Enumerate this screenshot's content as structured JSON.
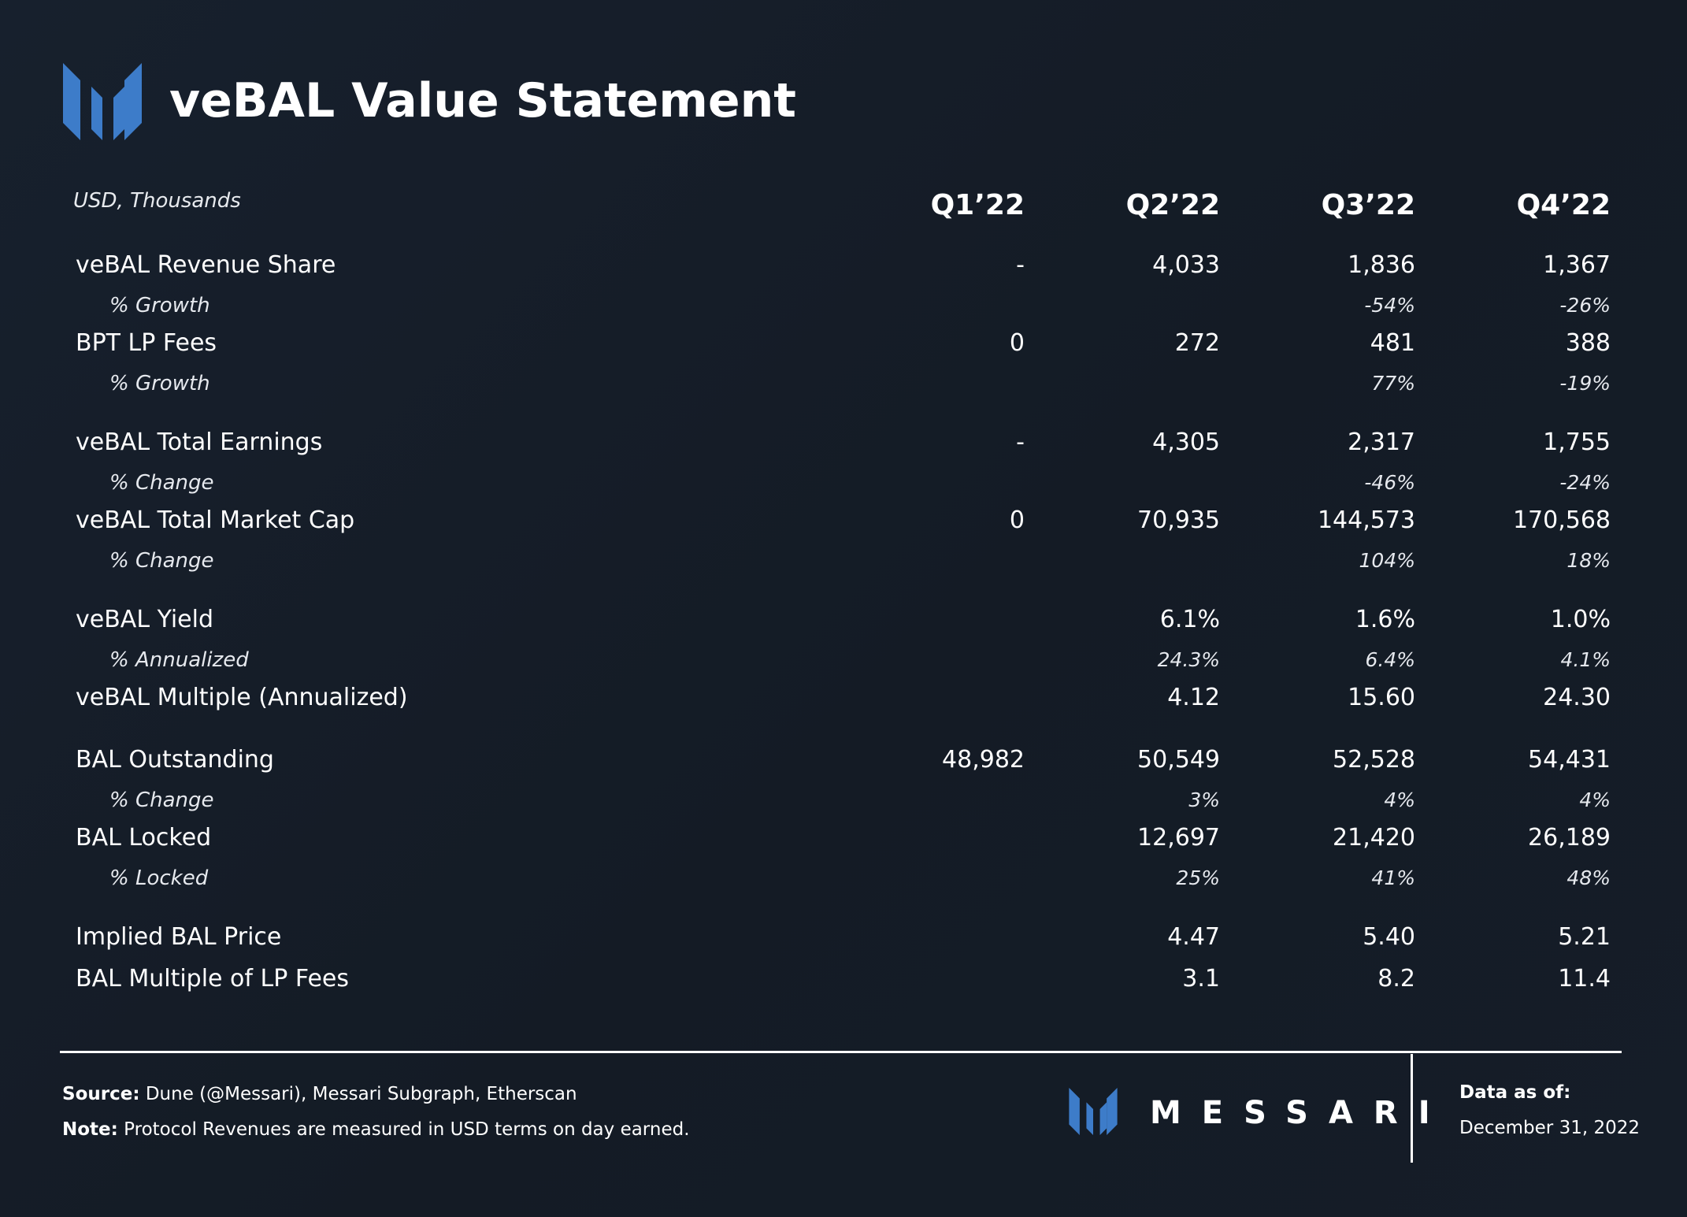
{
  "brand": {
    "wordmark": "MESSARI",
    "accent_color": "#3d7cc9"
  },
  "title": "veBAL Value Statement",
  "units_label": "USD, Thousands",
  "columns": [
    "Q1’22",
    "Q2’22",
    "Q3’22",
    "Q4’22"
  ],
  "rows": [
    {
      "label": "veBAL Revenue Share",
      "sub": false,
      "values": [
        "-",
        "4,033",
        "1,836",
        "1,367"
      ]
    },
    {
      "label": "% Growth",
      "sub": true,
      "values": [
        "",
        "",
        "-54%",
        "-26%"
      ]
    },
    {
      "label": "BPT LP Fees",
      "sub": false,
      "values": [
        "0",
        "272",
        "481",
        "388"
      ]
    },
    {
      "label": "% Growth",
      "sub": true,
      "values": [
        "",
        "",
        "77%",
        "-19%"
      ]
    },
    {
      "label": "veBAL Total Earnings",
      "sub": false,
      "values": [
        "-",
        "4,305",
        "2,317",
        "1,755"
      ]
    },
    {
      "label": "% Change",
      "sub": true,
      "values": [
        "",
        "",
        "-46%",
        "-24%"
      ]
    },
    {
      "label": "veBAL Total Market Cap",
      "sub": false,
      "values": [
        "0",
        "70,935",
        "144,573",
        "170,568"
      ]
    },
    {
      "label": "% Change",
      "sub": true,
      "values": [
        "",
        "",
        "104%",
        "18%"
      ]
    },
    {
      "label": "veBAL Yield",
      "sub": false,
      "values": [
        "",
        "6.1%",
        "1.6%",
        "1.0%"
      ]
    },
    {
      "label": "% Annualized",
      "sub": true,
      "values": [
        "",
        "24.3%",
        "6.4%",
        "4.1%"
      ]
    },
    {
      "label": "veBAL Multiple (Annualized)",
      "sub": false,
      "values": [
        "",
        "4.12",
        "15.60",
        "24.30"
      ]
    },
    {
      "label": "BAL Outstanding",
      "sub": false,
      "values": [
        "48,982",
        "50,549",
        "52,528",
        "54,431"
      ]
    },
    {
      "label": "% Change",
      "sub": true,
      "values": [
        "",
        "3%",
        "4%",
        "4%"
      ]
    },
    {
      "label": "BAL Locked",
      "sub": false,
      "values": [
        "",
        "12,697",
        "21,420",
        "26,189"
      ]
    },
    {
      "label": "% Locked",
      "sub": true,
      "values": [
        "",
        "25%",
        "41%",
        "48%"
      ]
    },
    {
      "label": "Implied BAL Price",
      "sub": false,
      "values": [
        "",
        "4.47",
        "5.40",
        "5.21"
      ]
    },
    {
      "label": "BAL Multiple of LP Fees",
      "sub": false,
      "values": [
        "",
        "3.1",
        "8.2",
        "11.4"
      ]
    }
  ],
  "footer": {
    "source_label": "Source:",
    "source_text": "Dune (@Messari), Messari Subgraph, Etherscan",
    "note_label": "Note:",
    "note_text": "Protocol Revenues are measured in USD terms on day earned.",
    "data_as_of_label": "Data as of:",
    "data_as_of_date": "December 31, 2022"
  }
}
